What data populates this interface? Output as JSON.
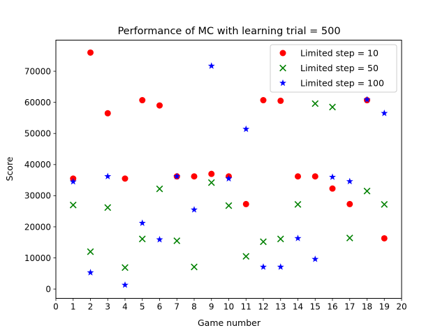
{
  "chart_data": {
    "type": "scatter",
    "title": "Performance of MC with learning trial = 500",
    "xlabel": "Game number",
    "ylabel": "Score",
    "xlim": [
      0,
      20
    ],
    "ylim": [
      -3000,
      80000
    ],
    "xticks": [
      "0",
      "1",
      "2",
      "3",
      "4",
      "5",
      "6",
      "7",
      "8",
      "9",
      "10",
      "11",
      "12",
      "13",
      "14",
      "15",
      "16",
      "17",
      "18",
      "19",
      "20"
    ],
    "yticks": [
      0,
      10000,
      20000,
      30000,
      40000,
      50000,
      60000,
      70000
    ],
    "ytick_labels": [
      "0",
      "10000",
      "20000",
      "30000",
      "40000",
      "50000",
      "60000",
      "70000"
    ],
    "grid": false,
    "legend_position": "top-right",
    "x": [
      1,
      2,
      3,
      4,
      5,
      6,
      7,
      8,
      9,
      10,
      11,
      12,
      13,
      14,
      15,
      16,
      17,
      18,
      19
    ],
    "series": [
      {
        "name": "Limited step = 10",
        "marker": "circle",
        "color": "#ff0000",
        "values": [
          35500,
          76000,
          56500,
          35500,
          60700,
          59000,
          36200,
          36200,
          37000,
          36200,
          27300,
          60700,
          60500,
          36200,
          36200,
          32300,
          27300,
          60700,
          16300
        ]
      },
      {
        "name": "Limited step = 50",
        "marker": "x",
        "color": "#008000",
        "values": [
          27000,
          12000,
          26200,
          6900,
          16100,
          32200,
          15500,
          7100,
          34200,
          26800,
          10500,
          15200,
          16100,
          27200,
          59600,
          58500,
          16400,
          31500,
          27200
        ]
      },
      {
        "name": "Limited step = 100",
        "marker": "star",
        "color": "#0000ff",
        "values": [
          34500,
          5300,
          36200,
          1300,
          21200,
          15900,
          36200,
          25500,
          71700,
          35500,
          51400,
          7100,
          7100,
          16300,
          9600,
          36000,
          34600,
          60900,
          56500
        ]
      }
    ]
  }
}
